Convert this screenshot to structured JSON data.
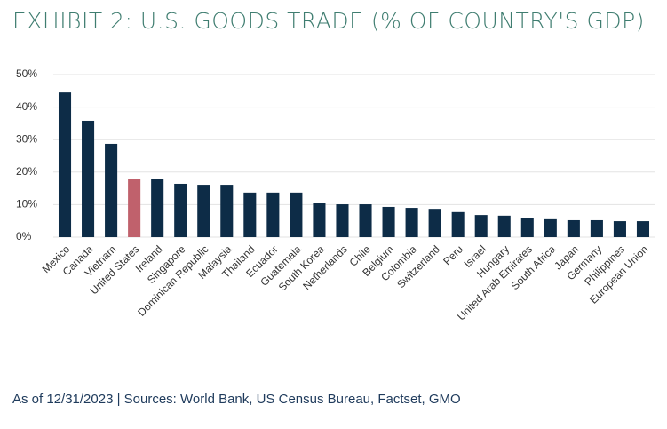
{
  "chart_data": {
    "type": "bar",
    "title": "EXHIBIT 2: U.S. GOODS TRADE (% OF COUNTRY'S GDP)",
    "source": "As of 12/31/2023 | Sources: World Bank, US Census Bureau, Factset, GMO",
    "categories": [
      "Mexico",
      "Canada",
      "Vietnam",
      "United States",
      "Ireland",
      "Singapore",
      "Dominican Republic",
      "Malaysia",
      "Thailand",
      "Ecuador",
      "Guatemala",
      "South Korea",
      "Netherlands",
      "Chile",
      "Belgium",
      "Colombia",
      "Switzerland",
      "Peru",
      "Israel",
      "Hungary",
      "United Arab Emirates",
      "South Africa",
      "Japan",
      "Germany",
      "Philippines",
      "European Union"
    ],
    "values": [
      44.5,
      35.8,
      28.7,
      18.0,
      17.8,
      16.4,
      16.1,
      16.1,
      13.7,
      13.7,
      13.7,
      10.4,
      10.1,
      10.1,
      9.3,
      9.0,
      8.7,
      7.7,
      6.8,
      6.6,
      6.0,
      5.5,
      5.2,
      5.2,
      4.9,
      4.9
    ],
    "colors": [
      "#0d2c47",
      "#0d2c47",
      "#0d2c47",
      "#c0616c",
      "#0d2c47",
      "#0d2c47",
      "#0d2c47",
      "#0d2c47",
      "#0d2c47",
      "#0d2c47",
      "#0d2c47",
      "#0d2c47",
      "#0d2c47",
      "#0d2c47",
      "#0d2c47",
      "#0d2c47",
      "#0d2c47",
      "#0d2c47",
      "#0d2c47",
      "#0d2c47",
      "#0d2c47",
      "#0d2c47",
      "#0d2c47",
      "#0d2c47",
      "#0d2c47",
      "#0d2c47"
    ],
    "ylim": [
      0,
      50
    ],
    "yticks": [
      {
        "value": 0,
        "label": "0%"
      },
      {
        "value": 10,
        "label": "10%"
      },
      {
        "value": 20,
        "label": "20%"
      },
      {
        "value": 30,
        "label": "30%"
      },
      {
        "value": 40,
        "label": "40%"
      },
      {
        "value": 50,
        "label": "50%"
      }
    ],
    "grid": true
  }
}
